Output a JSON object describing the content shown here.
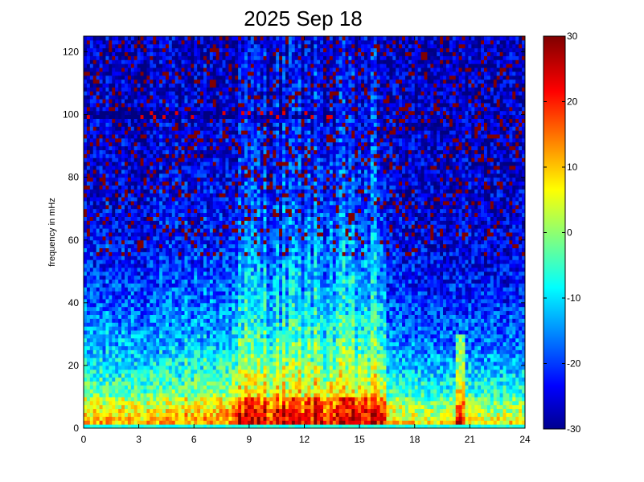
{
  "chart_data": {
    "type": "heatmap",
    "title": "2025 Sep 18",
    "xlabel": "",
    "ylabel": "frequency in mHz",
    "xlim": [
      0,
      24
    ],
    "ylim": [
      0,
      125
    ],
    "xticks": [
      "0",
      "3",
      "6",
      "9",
      "12",
      "15",
      "18",
      "21",
      "24"
    ],
    "yticks": [
      "0",
      "20",
      "40",
      "60",
      "80",
      "100",
      "120"
    ],
    "colorbar": {
      "colormap": "jet",
      "range": [
        -30,
        30
      ],
      "ticks": [
        "-30",
        "-20",
        "-10",
        "0",
        "10",
        "20",
        "30"
      ]
    },
    "grid": false,
    "features": {
      "broadband_high_activity_hours": [
        [
          8,
          16.5
        ]
      ],
      "low_frequency_peak_band_mhz": [
        2,
        10
      ],
      "narrow_event_hour": 20.5,
      "faint_line_mhz": 100
    }
  }
}
